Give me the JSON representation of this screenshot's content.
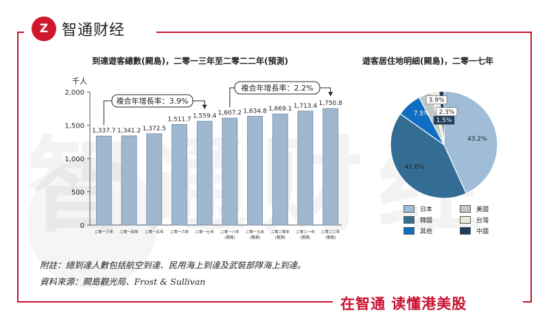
{
  "brand": {
    "logo_mark": "Z",
    "name": "智通财经",
    "slogan": "在智通 读懂港美股"
  },
  "bar_chart_title": "到達遊客總數(闕島)，二零一三年至二零二二年(預測)",
  "pie_chart_title": "遊客居住地明細(闕島)，二零一七年",
  "unit_label": "千人",
  "cagr": [
    {
      "label": "複合年增長率：3.9%"
    },
    {
      "label": "複合年增長率：2.2%"
    }
  ],
  "footnotes": {
    "note": "附註：總到達人數包括航空到達、民用海上到達及武裝部隊海上到達。",
    "source": "資料來源：闕島觀光局、Frost & Sullivan"
  },
  "colors": {
    "brand_red": "#c8102e",
    "bar": "#9fb8cf"
  },
  "chart_data": [
    {
      "type": "bar",
      "categories": [
        "二零一三年",
        "二零一四年",
        "二零一五年",
        "二零一六年",
        "二零一七年",
        "二零一八年",
        "二零一九年",
        "二零二零年",
        "二零二一年",
        "二零二二年"
      ],
      "category_notes": [
        "",
        "",
        "",
        "",
        "",
        "(預測)",
        "(預測)",
        "(預測)",
        "(預測)",
        "(預測)"
      ],
      "values": [
        1337.7,
        1341.2,
        1372.5,
        1511.7,
        1559.4,
        1607.2,
        1634.8,
        1669.1,
        1713.4,
        1750.8
      ],
      "value_labels": [
        "1,337.7",
        "1,341.2",
        "1,372.5",
        "1,511.7",
        "1,559.4",
        "1,607.2",
        "1,634.8",
        "1,669.1",
        "1,713.4",
        "1,750.8"
      ],
      "yticks": [
        "0",
        "500",
        "1,000",
        "1,500",
        "2,000"
      ],
      "ylim": [
        0,
        2000
      ],
      "ylabel": "千人",
      "grid": false
    },
    {
      "type": "pie",
      "slices": [
        {
          "label": "日本",
          "value": 43.2,
          "text": "43.2%",
          "color": "#9fbdd6"
        },
        {
          "label": "韓國",
          "value": 41.6,
          "text": "41.6%",
          "color": "#346d94"
        },
        {
          "label": "其他",
          "value": 7.5,
          "text": "7.5%",
          "color": "#0f6ec1"
        },
        {
          "label": "美國",
          "value": 3.9,
          "text": "3.9%",
          "color": "#bfc9c4"
        },
        {
          "label": "台灣",
          "value": 2.3,
          "text": "2.3%",
          "color": "#ece8d8"
        },
        {
          "label": "中國",
          "value": 1.5,
          "text": "1.5%",
          "color": "#1c3d5e"
        }
      ],
      "legend_position": "bottom"
    }
  ]
}
